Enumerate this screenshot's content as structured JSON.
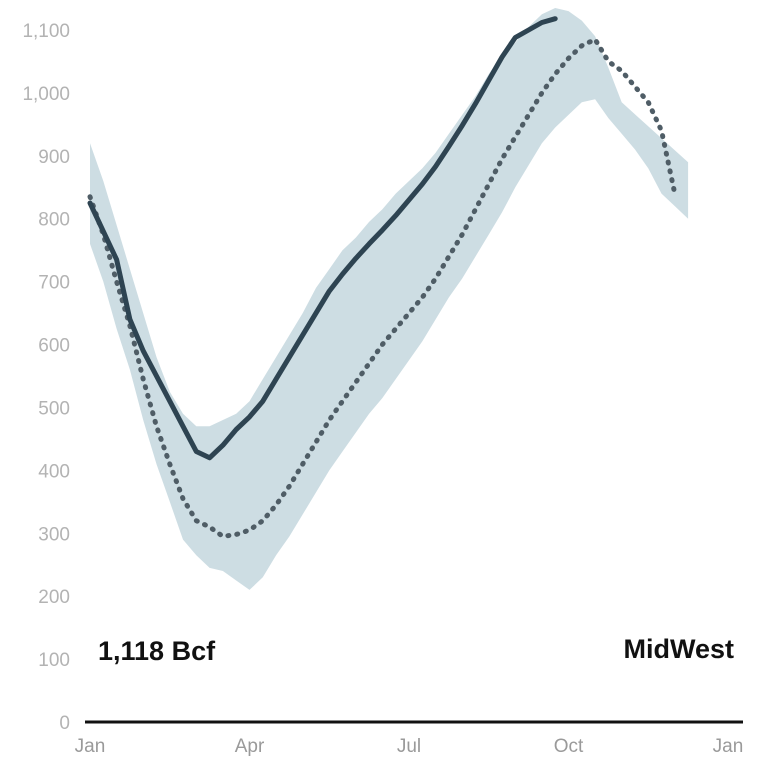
{
  "chart_data": {
    "type": "line",
    "title": "",
    "xlabel": "",
    "ylabel": "",
    "region_label": "MidWest",
    "current_value_label": "1,118 Bcf",
    "x_tick_labels": [
      "Jan",
      "Apr",
      "Jul",
      "Oct",
      "Jan"
    ],
    "y_tick_labels": [
      "0",
      "100",
      "200",
      "300",
      "400",
      "500",
      "600",
      "700",
      "800",
      "900",
      "1,000",
      "1,100"
    ],
    "ylim": [
      0,
      1150
    ],
    "xlim_months": [
      0,
      12
    ],
    "grid": false,
    "colors": {
      "current": "#2e4452",
      "average": "#4f5d66",
      "range": "#cddde3",
      "axis": "#111111",
      "tick_text": "#b3b3b3"
    },
    "x_month_positions": [
      0,
      0.25,
      0.5,
      0.75,
      1,
      1.25,
      1.5,
      1.75,
      2,
      2.25,
      2.5,
      2.75,
      3,
      3.25,
      3.5,
      3.75,
      4,
      4.25,
      4.5,
      4.75,
      5,
      5.25,
      5.5,
      5.75,
      6,
      6.25,
      6.5,
      6.75,
      7,
      7.25,
      7.5,
      7.75,
      8,
      8.25,
      8.5,
      8.75,
      9,
      9.25,
      9.5,
      9.75,
      10,
      10.25,
      10.5,
      10.75,
      11,
      11.25,
      11.5,
      11.75,
      12
    ],
    "series": [
      {
        "role": "range_min",
        "values": [
          760,
          700,
          625,
          560,
          480,
          410,
          350,
          290,
          265,
          245,
          240,
          225,
          210,
          230,
          265,
          295,
          330,
          365,
          400,
          430,
          460,
          490,
          515,
          545,
          575,
          605,
          640,
          675,
          705,
          740,
          775,
          810,
          850,
          885,
          920,
          945,
          965,
          985,
          990,
          960,
          935,
          910,
          880,
          840,
          820,
          800,
          null,
          null,
          null
        ]
      },
      {
        "role": "range_max",
        "values": [
          920,
          860,
          790,
          720,
          650,
          580,
          525,
          490,
          470,
          470,
          480,
          490,
          510,
          545,
          580,
          615,
          650,
          690,
          720,
          750,
          770,
          795,
          815,
          840,
          860,
          880,
          905,
          935,
          965,
          995,
          1030,
          1060,
          1080,
          1105,
          1125,
          1135,
          1130,
          1115,
          1090,
          1040,
          985,
          null,
          null,
          null,
          null,
          null,
          null,
          null,
          null
        ]
      },
      {
        "role": "five_year_average",
        "values": [
          835,
          775,
          700,
          630,
          545,
          470,
          410,
          355,
          320,
          310,
          295,
          298,
          305,
          320,
          345,
          375,
          410,
          445,
          480,
          510,
          540,
          570,
          600,
          625,
          650,
          675,
          705,
          740,
          775,
          815,
          855,
          895,
          930,
          965,
          1000,
          1030,
          1055,
          1075,
          1085,
          1050,
          1035,
          1010,
          985,
          940,
          840,
          null,
          null,
          null,
          null
        ]
      },
      {
        "role": "current_year",
        "values": [
          825,
          780,
          735,
          640,
          590,
          550,
          510,
          470,
          430,
          420,
          440,
          465,
          485,
          510,
          545,
          580,
          615,
          650,
          685,
          712,
          737,
          760,
          782,
          805,
          830,
          855,
          883,
          915,
          948,
          983,
          1020,
          1057,
          1088,
          1100,
          1112,
          1118,
          null,
          null,
          null,
          null,
          null,
          null,
          null,
          null,
          null,
          null,
          null,
          null,
          null
        ]
      }
    ]
  }
}
